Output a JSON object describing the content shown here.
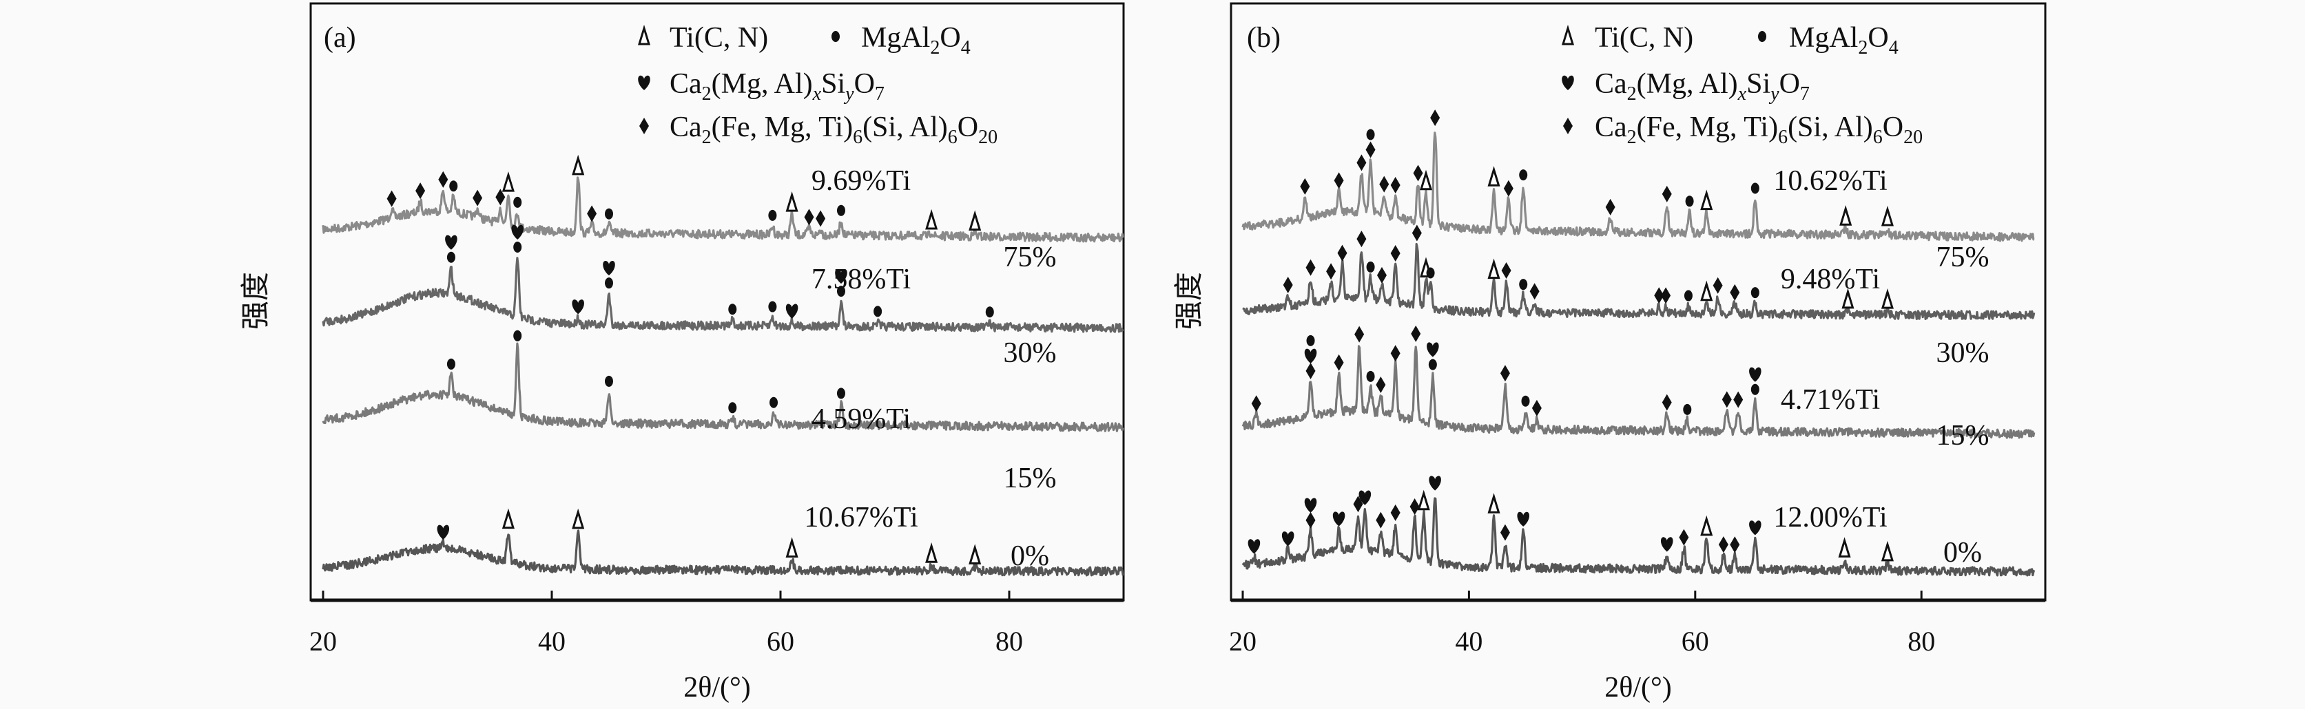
{
  "chart_data": [
    {
      "type": "line",
      "panel_label": "(a)",
      "xlabel": "2θ/(°)",
      "ylabel": "强度",
      "xlim": [
        19,
        90
      ],
      "xticks": [
        "20",
        "40",
        "60",
        "80"
      ],
      "legend_placement": "top-right",
      "legend": [
        {
          "marker": "triangle",
          "parts": [
            [
              "Ti(C, N)",
              ""
            ]
          ]
        },
        {
          "marker": "circle",
          "parts": [
            [
              "MgAl",
              "2"
            ],
            [
              "O",
              "4"
            ]
          ]
        },
        {
          "marker": "heart",
          "parts": [
            [
              "Ca",
              "2"
            ],
            [
              "(Mg, Al)",
              "x"
            ],
            [
              "Si",
              "y"
            ],
            [
              "O",
              "7"
            ]
          ]
        },
        {
          "marker": "diamond",
          "parts": [
            [
              "Ca",
              "2"
            ],
            [
              "(Fe, Mg, Ti)",
              "6"
            ],
            [
              "(Si, Al)",
              "6"
            ],
            [
              "O",
              "20"
            ]
          ]
        }
      ],
      "series": [
        {
          "name": "75%",
          "ti_label": "9.69%Ti",
          "color": "#8a8a8a",
          "hump": 30,
          "slope": 0.25,
          "peaks": [
            [
              26,
              12,
              "d"
            ],
            [
              28.5,
              15,
              "d"
            ],
            [
              30.5,
              30,
              "d"
            ],
            [
              31.4,
              22,
              "c"
            ],
            [
              33.5,
              12,
              "d"
            ],
            [
              35.5,
              22,
              "d"
            ],
            [
              36.2,
              45,
              "t"
            ],
            [
              37,
              20,
              "c"
            ],
            [
              42.3,
              80,
              "t"
            ],
            [
              43.5,
              12,
              "d"
            ],
            [
              45,
              12,
              "c"
            ],
            [
              59.3,
              12,
              "c"
            ],
            [
              61,
              30,
              "t"
            ],
            [
              62.5,
              10,
              "d"
            ],
            [
              63.5,
              8,
              "d"
            ],
            [
              65.3,
              20,
              "c"
            ],
            [
              73.2,
              6,
              "t"
            ],
            [
              77,
              5,
              "t"
            ]
          ]
        },
        {
          "name": "30%",
          "ti_label": "7.58%Ti",
          "color": "#666666",
          "hump": 45,
          "slope": 0.15,
          "peaks": [
            [
              31.2,
              38,
              "ch"
            ],
            [
              37,
              85,
              "ch"
            ],
            [
              42.3,
              10,
              "h"
            ],
            [
              45,
              45,
              "ch"
            ],
            [
              55.8,
              8,
              "c"
            ],
            [
              59.3,
              12,
              "c"
            ],
            [
              61,
              6,
              "h"
            ],
            [
              65.3,
              35,
              "ch"
            ],
            [
              68.5,
              6,
              "c"
            ],
            [
              78.3,
              6,
              "c"
            ]
          ]
        },
        {
          "name": "15%",
          "ti_label": "4.59%Ti",
          "color": "#7a7a7a",
          "hump": 40,
          "slope": 0.2,
          "peaks": [
            [
              31.2,
              30,
              "c"
            ],
            [
              37,
              100,
              "c"
            ],
            [
              45,
              45,
              "c"
            ],
            [
              55.8,
              8,
              "c"
            ],
            [
              59.4,
              16,
              "c"
            ],
            [
              65.3,
              30,
              "c"
            ]
          ]
        },
        {
          "name": "0%",
          "ti_label": "10.67%Ti",
          "color": "#555555",
          "hump": 30,
          "slope": 0.1,
          "peaks": [
            [
              30.5,
              8,
              "h"
            ],
            [
              36.2,
              45,
              "t"
            ],
            [
              42.3,
              55,
              "t"
            ],
            [
              61,
              15,
              "t"
            ],
            [
              73.2,
              8,
              "t"
            ],
            [
              77,
              6,
              "t"
            ]
          ]
        }
      ]
    },
    {
      "type": "line",
      "panel_label": "(b)",
      "xlabel": "2θ/(°)",
      "ylabel": "强度",
      "xlim": [
        19,
        90
      ],
      "xticks": [
        "20",
        "40",
        "60",
        "80"
      ],
      "legend_placement": "top-right",
      "legend": [
        {
          "marker": "triangle",
          "parts": [
            [
              "Ti(C, N)",
              ""
            ]
          ]
        },
        {
          "marker": "circle",
          "parts": [
            [
              "MgAl",
              "2"
            ],
            [
              "O",
              "4"
            ]
          ]
        },
        {
          "marker": "heart",
          "parts": [
            [
              "Ca",
              "2"
            ],
            [
              "(Mg, Al)",
              "x"
            ],
            [
              "Si",
              "y"
            ],
            [
              "O",
              "7"
            ]
          ]
        },
        {
          "marker": "diamond",
          "parts": [
            [
              "Ca",
              "2"
            ],
            [
              "(Fe, Mg, Ti)",
              "6"
            ],
            [
              "(Si, Al)",
              "6"
            ],
            [
              "O",
              "20"
            ]
          ]
        }
      ],
      "series": [
        {
          "name": "75%",
          "ti_label": "10.62%Ti",
          "color": "#8a8a8a",
          "hump": 25,
          "slope": 0.35,
          "peaks": [
            [
              25.5,
              30,
              "d"
            ],
            [
              28.5,
              30,
              "d"
            ],
            [
              30.5,
              55,
              "d"
            ],
            [
              31.3,
              75,
              "dc"
            ],
            [
              32.5,
              28,
              "d"
            ],
            [
              33.5,
              30,
              "d"
            ],
            [
              35.5,
              55,
              "d"
            ],
            [
              36.2,
              45,
              "t"
            ],
            [
              37,
              140,
              "d"
            ],
            [
              42.2,
              60,
              "t"
            ],
            [
              43.5,
              45,
              "d"
            ],
            [
              44.8,
              65,
              "c"
            ],
            [
              52.5,
              20,
              "d"
            ],
            [
              57.5,
              40,
              "d"
            ],
            [
              59.5,
              30,
              "c"
            ],
            [
              61,
              30,
              "t"
            ],
            [
              65.3,
              50,
              "c"
            ],
            [
              73.3,
              10,
              "t"
            ],
            [
              77,
              10,
              "t"
            ]
          ]
        },
        {
          "name": "30%",
          "ti_label": "9.48%Ti",
          "color": "#5e5e5e",
          "hump": 20,
          "slope": 0.15,
          "peaks": [
            [
              24,
              15,
              "d"
            ],
            [
              26,
              35,
              "d"
            ],
            [
              27.8,
              25,
              "d"
            ],
            [
              28.8,
              50,
              "d"
            ],
            [
              30.5,
              70,
              "d"
            ],
            [
              31.3,
              30,
              "c"
            ],
            [
              32.3,
              20,
              "d"
            ],
            [
              33.5,
              55,
              "d"
            ],
            [
              35.4,
              90,
              "d"
            ],
            [
              36.2,
              40,
              "t"
            ],
            [
              36.6,
              35,
              "c"
            ],
            [
              42.2,
              45,
              "t"
            ],
            [
              43.3,
              45,
              "d"
            ],
            [
              44.8,
              25,
              "c"
            ],
            [
              45.8,
              15,
              "d"
            ],
            [
              56.8,
              10,
              "d"
            ],
            [
              57.4,
              10,
              "d"
            ],
            [
              59.4,
              10,
              "c"
            ],
            [
              61,
              15,
              "t"
            ],
            [
              62,
              25,
              "d"
            ],
            [
              63.5,
              15,
              "d"
            ],
            [
              65.3,
              15,
              "c"
            ],
            [
              73.5,
              5,
              "t"
            ],
            [
              77,
              5,
              "t"
            ]
          ]
        },
        {
          "name": "15%",
          "ti_label": "4.71%Ti",
          "color": "#777777",
          "hump": 25,
          "slope": 0.25,
          "peaks": [
            [
              21.2,
              15,
              "d"
            ],
            [
              26,
              50,
              "dhc"
            ],
            [
              28.5,
              55,
              "d"
            ],
            [
              30.3,
              95,
              "d"
            ],
            [
              31.3,
              35,
              "c"
            ],
            [
              32.2,
              25,
              "d"
            ],
            [
              33.5,
              75,
              "d"
            ],
            [
              35.3,
              110,
              "d"
            ],
            [
              36.8,
              70,
              "ch"
            ],
            [
              43.2,
              65,
              "d"
            ],
            [
              45,
              25,
              "c"
            ],
            [
              46,
              15,
              "d"
            ],
            [
              57.5,
              25,
              "d"
            ],
            [
              59.3,
              15,
              "c"
            ],
            [
              62.8,
              30,
              "d"
            ],
            [
              63.8,
              30,
              "d"
            ],
            [
              65.3,
              45,
              "ch"
            ]
          ]
        },
        {
          "name": "0%",
          "ti_label": "12.00%Ti",
          "color": "#555555",
          "hump": 25,
          "slope": 0.2,
          "peaks": [
            [
              21,
              10,
              "h"
            ],
            [
              24,
              15,
              "h"
            ],
            [
              26,
              35,
              "dh"
            ],
            [
              28.5,
              30,
              "h"
            ],
            [
              30.2,
              50,
              "d"
            ],
            [
              30.8,
              60,
              "h"
            ],
            [
              32.2,
              30,
              "d"
            ],
            [
              33.5,
              45,
              "d"
            ],
            [
              35.2,
              60,
              "d"
            ],
            [
              36,
              70,
              "t"
            ],
            [
              37,
              100,
              "h"
            ],
            [
              42.2,
              75,
              "t"
            ],
            [
              43.2,
              35,
              "d"
            ],
            [
              44.8,
              55,
              "h"
            ],
            [
              57.5,
              20,
              "h"
            ],
            [
              59,
              30,
              "d"
            ],
            [
              61,
              45,
              "t"
            ],
            [
              62.5,
              20,
              "d"
            ],
            [
              63.5,
              20,
              "d"
            ],
            [
              65.3,
              45,
              "h"
            ],
            [
              73.2,
              15,
              "t"
            ],
            [
              77,
              10,
              "t"
            ]
          ]
        }
      ]
    }
  ]
}
